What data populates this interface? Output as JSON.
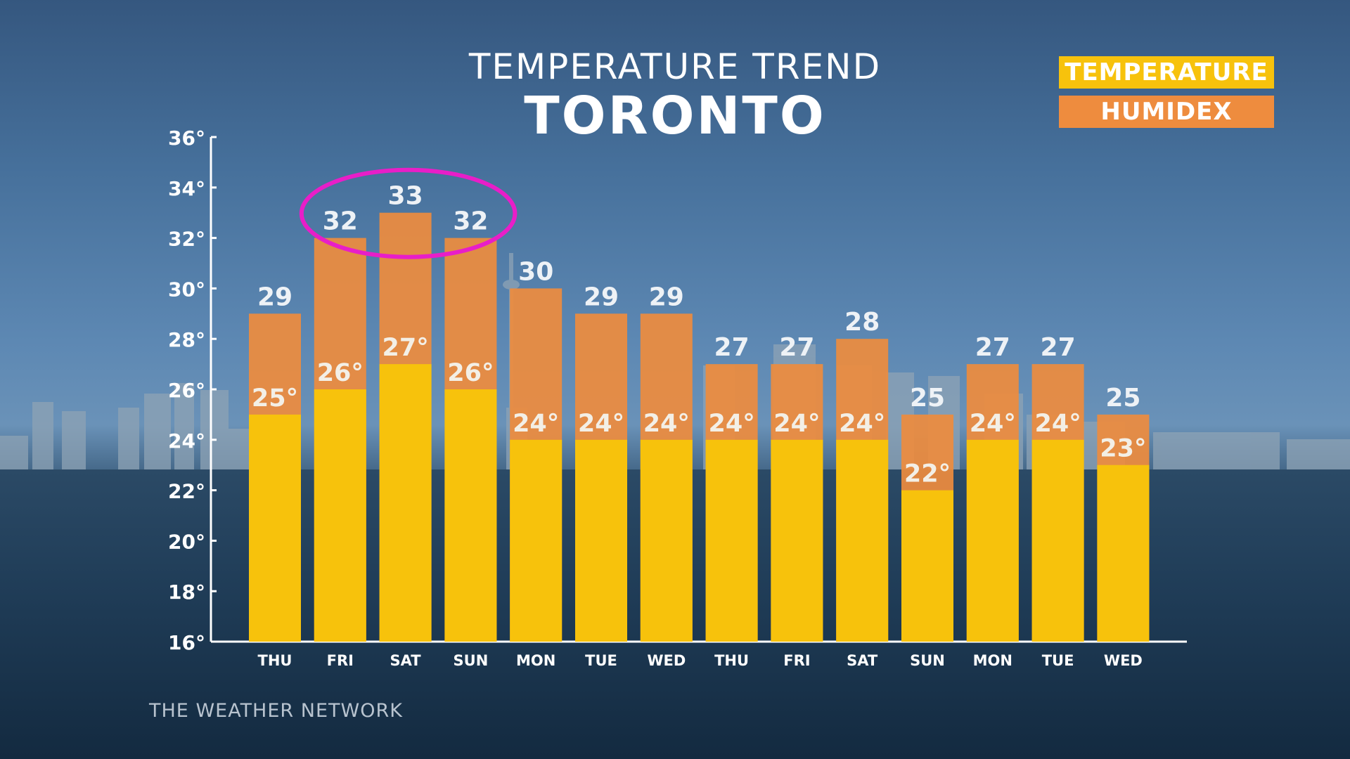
{
  "title": "TEMPERATURE TREND",
  "subtitle": "TORONTO",
  "brand": "THE WEATHER NETWORK",
  "legend": {
    "temperature": "TEMPERATURE",
    "humidex": "HUMIDEX"
  },
  "colors": {
    "temperature": "#f7c20c",
    "humidex": "#ee8c3e",
    "highlight": "#e81ec8",
    "axis": "#ffffff"
  },
  "chart_data": {
    "type": "bar",
    "title": "TEMPERATURE TREND",
    "subtitle": "TORONTO",
    "categories": [
      "THU",
      "FRI",
      "SAT",
      "SUN",
      "MON",
      "TUE",
      "WED",
      "THU",
      "FRI",
      "SAT",
      "SUN",
      "MON",
      "TUE",
      "WED"
    ],
    "series": [
      {
        "name": "TEMPERATURE",
        "values": [
          25,
          26,
          27,
          26,
          24,
          24,
          24,
          24,
          24,
          24,
          22,
          24,
          24,
          23
        ]
      },
      {
        "name": "HUMIDEX",
        "values": [
          29,
          32,
          33,
          32,
          30,
          29,
          29,
          27,
          27,
          28,
          25,
          27,
          27,
          25
        ]
      }
    ],
    "temperature_labels": [
      "25°",
      "26°",
      "27°",
      "26°",
      "24°",
      "24°",
      "24°",
      "24°",
      "24°",
      "24°",
      "22°",
      "24°",
      "24°",
      "23°"
    ],
    "humidex_labels": [
      "29",
      "32",
      "33",
      "32",
      "30",
      "29",
      "29",
      "27",
      "27",
      "28",
      "25",
      "27",
      "27",
      "25"
    ],
    "ylim": [
      16,
      36
    ],
    "yticks": [
      "16°",
      "18°",
      "20°",
      "22°",
      "24°",
      "26°",
      "28°",
      "30°",
      "32°",
      "34°",
      "36°"
    ],
    "grid": false,
    "legend_position": "top-right",
    "annotation": {
      "type": "ellipse",
      "covers_categories": [
        "FRI",
        "SAT",
        "SUN"
      ],
      "note": "highlight of highest humidex values"
    }
  }
}
